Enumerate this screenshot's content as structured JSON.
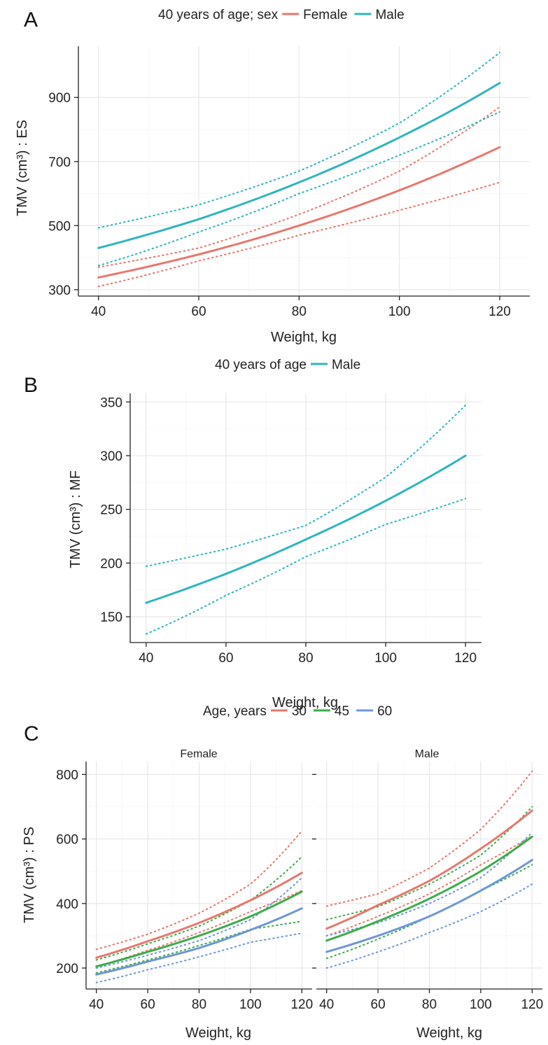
{
  "colors": {
    "female": "#e8776e",
    "male": "#2fb5bd",
    "age30": "#e8776e",
    "age45": "#3cac4a",
    "age60": "#6e97d6"
  },
  "panelA": {
    "letter": "A",
    "legend": {
      "title": "40 years of age; sex",
      "entries": [
        {
          "label": "Female",
          "color": "female"
        },
        {
          "label": "Male",
          "color": "male"
        }
      ]
    },
    "ylabel": "TMV (cm³) : ES",
    "xlabel": "Weight, kg"
  },
  "panelB": {
    "letter": "B",
    "legend": {
      "title": "40 years of age",
      "entries": [
        {
          "label": "Male",
          "color": "male"
        }
      ]
    },
    "ylabel": "TMV (cm³) : MF",
    "xlabel": "Weight, kg"
  },
  "panelC": {
    "letter": "C",
    "legend": {
      "title": "Age, years",
      "entries": [
        {
          "label": "30",
          "color": "age30"
        },
        {
          "label": "45",
          "color": "age45"
        },
        {
          "label": "60",
          "color": "age60"
        }
      ]
    },
    "ylabel": "TMV (cm³) : PS",
    "facets": [
      "Female",
      "Male"
    ],
    "xlabel": "Weight, kg"
  },
  "chart_data": [
    {
      "type": "line",
      "panel": "A",
      "title": "40 years of age; sex",
      "xlabel": "Weight, kg",
      "ylabel": "TMV (cm³) : ES",
      "xlim": [
        36,
        126
      ],
      "ylim": [
        280,
        1060
      ],
      "xticks": [
        40,
        60,
        80,
        100,
        120
      ],
      "yticks": [
        300,
        500,
        700,
        900
      ],
      "x": [
        40,
        60,
        80,
        100,
        120
      ],
      "series": [
        {
          "name": "Female",
          "color": "female",
          "fit": [
            338,
            410,
            500,
            610,
            745
          ],
          "lower": [
            310,
            390,
            470,
            548,
            635
          ],
          "upper": [
            370,
            430,
            535,
            670,
            870
          ]
        },
        {
          "name": "Male",
          "color": "male",
          "fit": [
            430,
            520,
            635,
            775,
            945
          ],
          "lower": [
            375,
            480,
            600,
            720,
            855
          ],
          "upper": [
            493,
            565,
            670,
            820,
            1040
          ]
        }
      ]
    },
    {
      "type": "line",
      "panel": "B",
      "title": "40 years of age",
      "xlabel": "Weight, kg",
      "ylabel": "TMV (cm³) : MF",
      "xlim": [
        36,
        124
      ],
      "ylim": [
        126,
        358
      ],
      "xticks": [
        40,
        60,
        80,
        100,
        120
      ],
      "yticks": [
        150,
        200,
        250,
        300,
        350
      ],
      "x": [
        40,
        60,
        80,
        100,
        120
      ],
      "series": [
        {
          "name": "Male",
          "color": "male",
          "fit": [
            163,
            190,
            222,
            258,
            300
          ],
          "lower": [
            134,
            170,
            206,
            236,
            260
          ],
          "upper": [
            197,
            213,
            235,
            280,
            347
          ]
        }
      ]
    },
    {
      "type": "line",
      "panel": "C",
      "facet": "Female",
      "title": "Age, years",
      "xlabel": "Weight, kg",
      "ylabel": "TMV (cm³) : PS",
      "xlim": [
        36,
        124
      ],
      "ylim": [
        135,
        840
      ],
      "xticks": [
        40,
        60,
        80,
        100,
        120
      ],
      "yticks": [
        200,
        400,
        600,
        800
      ],
      "x": [
        40,
        60,
        80,
        100,
        120
      ],
      "series": [
        {
          "name": "30",
          "color": "age30",
          "fit": [
            232,
            283,
            340,
            410,
            495
          ],
          "lower": [
            205,
            255,
            310,
            375,
            440
          ],
          "upper": [
            258,
            305,
            370,
            460,
            625
          ]
        },
        {
          "name": "45",
          "color": "age45",
          "fit": [
            205,
            250,
            300,
            360,
            437
          ],
          "lower": [
            185,
            225,
            270,
            320,
            345
          ],
          "upper": [
            225,
            275,
            330,
            410,
            545
          ]
        },
        {
          "name": "60",
          "color": "age60",
          "fit": [
            180,
            220,
            262,
            318,
            385
          ],
          "lower": [
            155,
            195,
            235,
            280,
            308
          ],
          "upper": [
            200,
            240,
            285,
            350,
            480
          ]
        }
      ]
    },
    {
      "type": "line",
      "panel": "C",
      "facet": "Male",
      "title": "Age, years",
      "xlabel": "Weight, kg",
      "ylabel": "TMV (cm³) : PS",
      "xlim": [
        36,
        124
      ],
      "ylim": [
        135,
        840
      ],
      "xticks": [
        40,
        60,
        80,
        100,
        120
      ],
      "yticks": [
        200,
        400,
        600,
        800
      ],
      "x": [
        40,
        60,
        80,
        100,
        120
      ],
      "series": [
        {
          "name": "30",
          "color": "age30",
          "fit": [
            322,
            395,
            470,
            570,
            688
          ],
          "lower": [
            300,
            360,
            430,
            520,
            610
          ],
          "upper": [
            392,
            430,
            510,
            630,
            810
          ]
        },
        {
          "name": "45",
          "color": "age45",
          "fit": [
            285,
            345,
            415,
            500,
            607
          ],
          "lower": [
            230,
            290,
            360,
            440,
            520
          ],
          "upper": [
            350,
            390,
            460,
            550,
            700
          ]
        },
        {
          "name": "60",
          "color": "age60",
          "fit": [
            250,
            300,
            360,
            440,
            535
          ],
          "lower": [
            200,
            250,
            310,
            375,
            460
          ],
          "upper": [
            300,
            340,
            400,
            480,
            620
          ]
        }
      ]
    }
  ]
}
